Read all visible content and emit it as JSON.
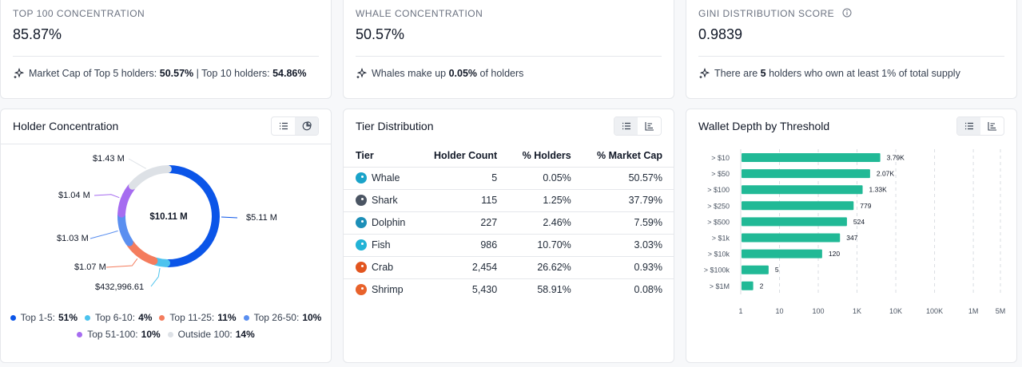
{
  "stats": [
    {
      "label": "TOP 100 CONCENTRATION",
      "value": "85.87%",
      "foot": [
        {
          "t": "Market Cap of Top 5 holders: "
        },
        {
          "t": "50.57%",
          "b": true
        },
        {
          "t": " | Top 10 holders: "
        },
        {
          "t": "54.86%",
          "b": true
        }
      ]
    },
    {
      "label": "WHALE CONCENTRATION",
      "value": "50.57%",
      "foot": [
        {
          "t": "Whales make up "
        },
        {
          "t": "0.05%",
          "b": true
        },
        {
          "t": " of holders"
        }
      ]
    },
    {
      "label": "GINI DISTRIBUTION SCORE",
      "value": "0.9839",
      "foot": [
        {
          "t": "There are "
        },
        {
          "t": "5",
          "b": true
        },
        {
          "t": " holders who own at least 1% of total supply"
        }
      ]
    }
  ],
  "holder_concentration": {
    "title": "Holder Concentration",
    "center_label": "$10.11 M",
    "segments": [
      {
        "name": "Top 1-5:",
        "pct_label": "51%",
        "share": 50.5,
        "color": "#0b55e8",
        "value_label": "$5.11 M"
      },
      {
        "name": "Top 6-10:",
        "pct_label": "4%",
        "share": 4.3,
        "color": "#4cc3ee",
        "value_label": "$432,996.61"
      },
      {
        "name": "Top 11-25:",
        "pct_label": "11%",
        "share": 10.6,
        "color": "#f47c5d",
        "value_label": "$1.07 M"
      },
      {
        "name": "Top 26-50:",
        "pct_label": "10%",
        "share": 10.2,
        "color": "#5a8ff0",
        "value_label": "$1.03 M"
      },
      {
        "name": "Top 51-100:",
        "pct_label": "10%",
        "share": 10.3,
        "color": "#a66cf0",
        "value_label": "$1.04 M"
      },
      {
        "name": "Outside 100:",
        "pct_label": "14%",
        "share": 14.1,
        "color": "#dde1e6",
        "value_label": "$1.43 M"
      }
    ]
  },
  "tier_distribution": {
    "title": "Tier Distribution",
    "columns": [
      "Tier",
      "Holder Count",
      "% Holders",
      "% Market Cap"
    ],
    "rows": [
      {
        "tier": "Whale",
        "icon": "whale-icon",
        "color": "#1aa3c9",
        "count": "5",
        "holders": "0.05%",
        "mcap": "50.57%"
      },
      {
        "tier": "Shark",
        "icon": "shark-icon",
        "color": "#4b5563",
        "count": "115",
        "holders": "1.25%",
        "mcap": "37.79%"
      },
      {
        "tier": "Dolphin",
        "icon": "dolphin-icon",
        "color": "#1d8fb8",
        "count": "227",
        "holders": "2.46%",
        "mcap": "7.59%"
      },
      {
        "tier": "Fish",
        "icon": "fish-icon",
        "color": "#22b3d6",
        "count": "986",
        "holders": "10.70%",
        "mcap": "3.03%"
      },
      {
        "tier": "Crab",
        "icon": "crab-icon",
        "color": "#e2551f",
        "count": "2,454",
        "holders": "26.62%",
        "mcap": "0.93%"
      },
      {
        "tier": "Shrimp",
        "icon": "shrimp-icon",
        "color": "#e8622b",
        "count": "5,430",
        "holders": "58.91%",
        "mcap": "0.08%"
      }
    ]
  },
  "wallet_depth": {
    "title": "Wallet Depth by Threshold",
    "bar_color": "#21b996",
    "chart_data": {
      "type": "bar",
      "orientation": "horizontal",
      "categories": [
        "> $10",
        "> $50",
        "> $100",
        "> $250",
        "> $500",
        "> $1k",
        "> $10k",
        "> $100k",
        "> $1M"
      ],
      "values": [
        3790,
        2070,
        1330,
        779,
        524,
        347,
        120,
        5,
        2
      ],
      "labels": [
        "3.79K",
        "2.07K",
        "1.33K",
        "779",
        "524",
        "347",
        "120",
        "5",
        "2"
      ],
      "x_scale": "log",
      "x_ticks": [
        1,
        10,
        100,
        1000,
        10000,
        100000,
        1000000,
        5000000
      ],
      "x_tick_labels": [
        "1",
        "10",
        "100",
        "1K",
        "10K",
        "100K",
        "1M",
        "5M"
      ]
    }
  }
}
